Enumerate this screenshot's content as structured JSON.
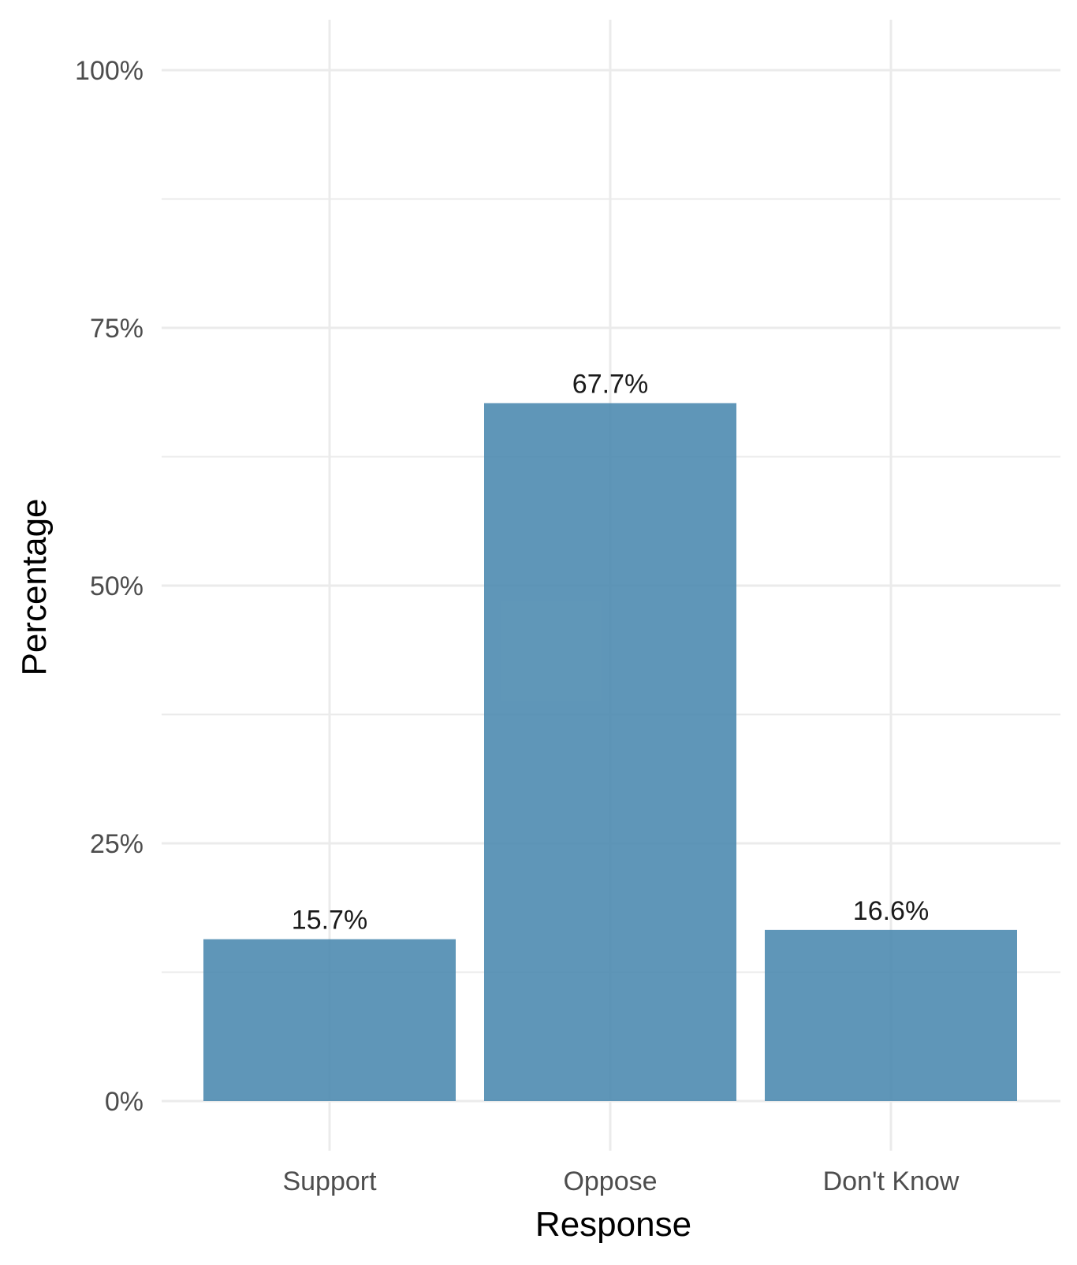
{
  "chart_data": {
    "type": "bar",
    "categories": [
      "Support",
      "Oppose",
      "Don't Know"
    ],
    "values": [
      15.7,
      67.7,
      16.6
    ],
    "value_labels": [
      "15.7%",
      "67.7%",
      "16.6%"
    ],
    "title": "",
    "xlabel": "Response",
    "ylabel": "Percentage",
    "ylim": [
      0,
      100
    ],
    "yticks": [
      0,
      25,
      50,
      75,
      100
    ],
    "ytick_labels": [
      "0%",
      "25%",
      "50%",
      "75%",
      "100%"
    ],
    "grid": true,
    "legend": "none",
    "bar_color": "#4e8bb0"
  }
}
